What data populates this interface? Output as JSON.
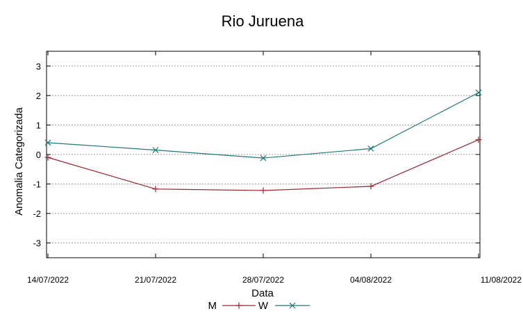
{
  "chart_data": {
    "type": "line",
    "title": "Rio Juruena",
    "xlabel": "Data",
    "ylabel": "Anomalia Categorizada",
    "x": [
      "14/07/2022",
      "21/07/2022",
      "28/07/2022",
      "04/08/2022",
      "11/08/2022"
    ],
    "ylim": [
      -3.5,
      3.5
    ],
    "yticks": [
      -3,
      -2,
      -1,
      0,
      1,
      2,
      3
    ],
    "grid": "horizontal dotted",
    "legend_position": "bottom",
    "series": [
      {
        "name": "M",
        "color": "#a0202a",
        "marker": "plus",
        "values": [
          -0.1,
          -1.17,
          -1.22,
          -1.08,
          0.5
        ]
      },
      {
        "name": "W",
        "color": "#1a7878",
        "marker": "cross",
        "values": [
          0.4,
          0.15,
          -0.12,
          0.2,
          2.1
        ]
      }
    ]
  }
}
